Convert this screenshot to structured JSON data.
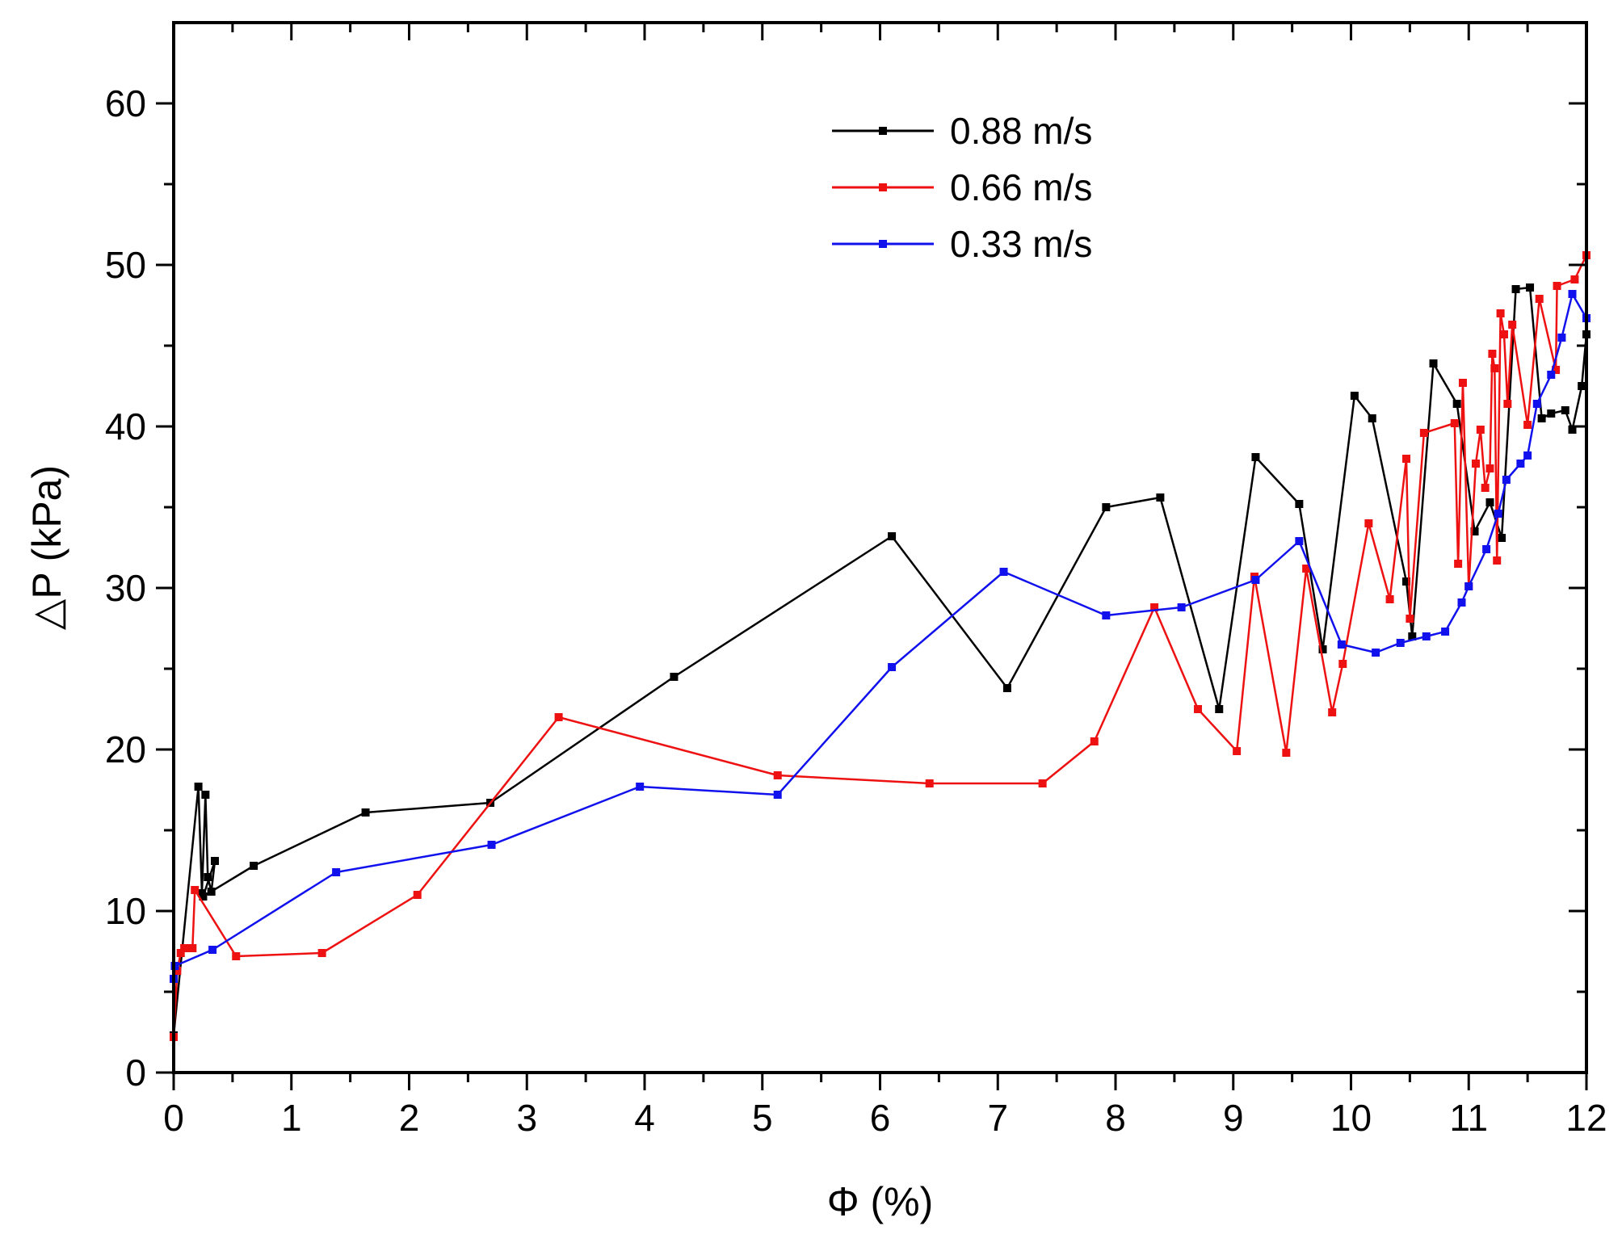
{
  "chart_data": {
    "type": "line",
    "title": "",
    "xlabel": "Φ (%)",
    "ylabel": "△P (kPa)",
    "xlim": [
      0,
      12
    ],
    "ylim": [
      0,
      65
    ],
    "xticks": [
      "0",
      "1",
      "2",
      "3",
      "4",
      "5",
      "6",
      "7",
      "8",
      "9",
      "10",
      "11",
      "12"
    ],
    "yticks": [
      "0",
      "10",
      "20",
      "30",
      "40",
      "50",
      "60"
    ],
    "grid": false,
    "legend_position": "top-center",
    "series": [
      {
        "name": "0.88 m/s",
        "color": "#000000",
        "x": [
          0.0,
          0.21,
          0.24,
          0.27,
          0.29,
          0.32,
          0.35,
          0.25,
          0.68,
          1.63,
          2.69,
          4.25,
          6.1,
          7.08,
          7.92,
          8.38,
          8.88,
          9.19,
          9.56,
          9.76,
          10.03,
          10.18,
          10.47,
          10.52,
          10.7,
          10.9,
          11.05,
          11.18,
          11.28,
          11.4,
          11.52,
          11.62,
          11.7,
          11.82,
          11.88,
          11.96,
          12.0
        ],
        "y": [
          2.3,
          17.7,
          11.1,
          17.2,
          12.1,
          11.2,
          13.1,
          10.9,
          12.8,
          16.1,
          16.7,
          24.5,
          33.2,
          23.8,
          35.0,
          35.6,
          22.5,
          38.1,
          35.2,
          26.2,
          41.9,
          40.5,
          30.4,
          27.0,
          43.9,
          41.4,
          33.5,
          35.3,
          33.1,
          48.5,
          48.6,
          40.5,
          40.8,
          41.0,
          39.8,
          42.5,
          45.7
        ]
      },
      {
        "name": "0.66 m/s",
        "color": "#ee1111",
        "x": [
          0.0,
          0.03,
          0.06,
          0.09,
          0.12,
          0.16,
          0.18,
          0.53,
          1.26,
          2.07,
          3.27,
          5.13,
          6.42,
          7.38,
          7.82,
          8.33,
          8.7,
          9.03,
          9.18,
          9.45,
          9.62,
          9.84,
          9.93,
          10.15,
          10.33,
          10.47,
          10.5,
          10.62,
          10.88,
          10.91,
          10.95,
          11.0,
          11.06,
          11.1,
          11.14,
          11.18,
          11.2,
          11.22,
          11.24,
          11.27,
          11.3,
          11.33,
          11.37,
          11.5,
          11.6,
          11.74,
          11.75,
          11.9,
          12.0
        ],
        "y": [
          2.2,
          6.3,
          7.4,
          7.7,
          7.7,
          7.7,
          11.3,
          7.2,
          7.4,
          11.0,
          22.0,
          18.4,
          17.9,
          17.9,
          20.5,
          28.8,
          22.5,
          19.9,
          30.7,
          19.8,
          31.2,
          22.3,
          25.3,
          34.0,
          29.3,
          38.0,
          28.1,
          39.6,
          40.2,
          31.5,
          42.7,
          30.1,
          37.7,
          39.8,
          36.2,
          37.4,
          44.5,
          43.6,
          31.7,
          47.0,
          45.7,
          41.4,
          46.3,
          40.1,
          47.9,
          43.5,
          48.7,
          49.1,
          50.6
        ]
      },
      {
        "name": "0.33 m/s",
        "color": "#1111ee",
        "x": [
          0.0,
          0.01,
          0.33,
          1.38,
          2.7,
          3.96,
          5.13,
          6.1,
          7.05,
          7.92,
          8.56,
          9.19,
          9.56,
          9.92,
          10.21,
          10.42,
          10.64,
          10.8,
          10.94,
          11.0,
          11.15,
          11.25,
          11.32,
          11.44,
          11.5,
          11.58,
          11.7,
          11.79,
          11.88,
          12.0
        ],
        "y": [
          5.8,
          6.6,
          7.6,
          12.4,
          14.1,
          17.7,
          17.2,
          25.1,
          31.0,
          28.3,
          28.8,
          30.5,
          32.9,
          26.5,
          26.0,
          26.6,
          27.0,
          27.3,
          29.1,
          30.1,
          32.4,
          34.6,
          36.7,
          37.7,
          38.2,
          41.4,
          43.2,
          45.5,
          48.2,
          46.7
        ]
      }
    ]
  }
}
